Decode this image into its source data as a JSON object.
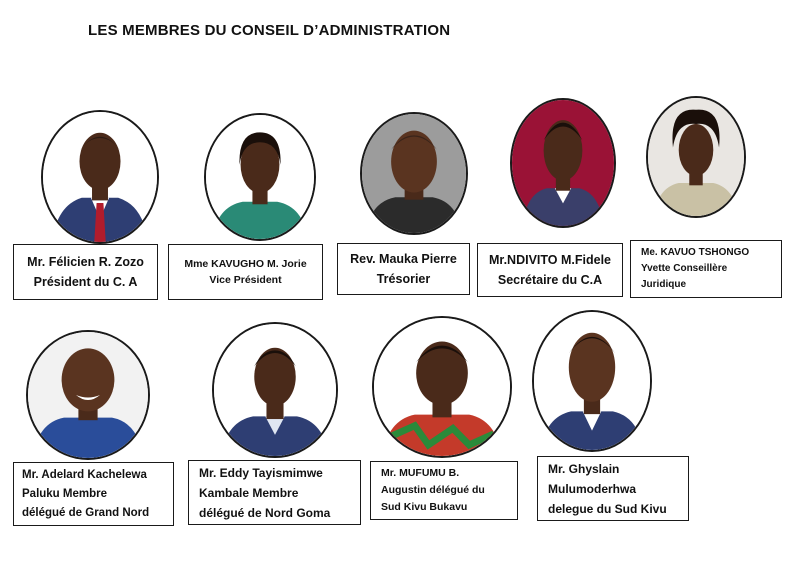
{
  "title": "LES MEMBRES DU CONSEIL D’ADMINISTRATION",
  "colors": {
    "skin": "#4a2a1a",
    "skin_light": "#6b3d24",
    "hair": "#1a0f0a",
    "suit_navy": "#2e3e73",
    "suit_dark": "#2b2b2b",
    "dress_teal": "#2a8a76",
    "bg_red": "#9a1236",
    "bg_neutral": "#e9e6e2"
  },
  "members": [
    {
      "line1": "Mr. Félicien R. Zozo",
      "line2": "Président du C. A",
      "line3": ""
    },
    {
      "line1": "Mme KAVUGHO M. Jorie",
      "line2": "Vice  Président",
      "line3": ""
    },
    {
      "line1": "Rev. Mauka Pierre",
      "line2": "Trésorier",
      "line3": ""
    },
    {
      "line1": "Mr.NDIVITO M.Fidele",
      "line2": "Secrétaire du C.A",
      "line3": ""
    },
    {
      "line1": "Me. KAVUO TSHONGO",
      "line2": "Yvette Conseillère",
      "line3": "Juridique"
    },
    {
      "line1": "Mr. Adelard Kachelewa",
      "line2": "Paluku Membre",
      "line3": "délégué de Grand Nord"
    },
    {
      "line1": "Mr. Eddy Tayismimwe",
      "line2": "Kambale Membre",
      "line3": "délégué de Nord Goma"
    },
    {
      "line1": "Mr. MUFUMU B.",
      "line2": "Augustin délégué du",
      "line3": "Sud Kivu Bukavu"
    },
    {
      "line1": "Mr. Ghyslain",
      "line2": "Mulumoderhwa",
      "line3": "delegue du Sud Kivu"
    }
  ]
}
